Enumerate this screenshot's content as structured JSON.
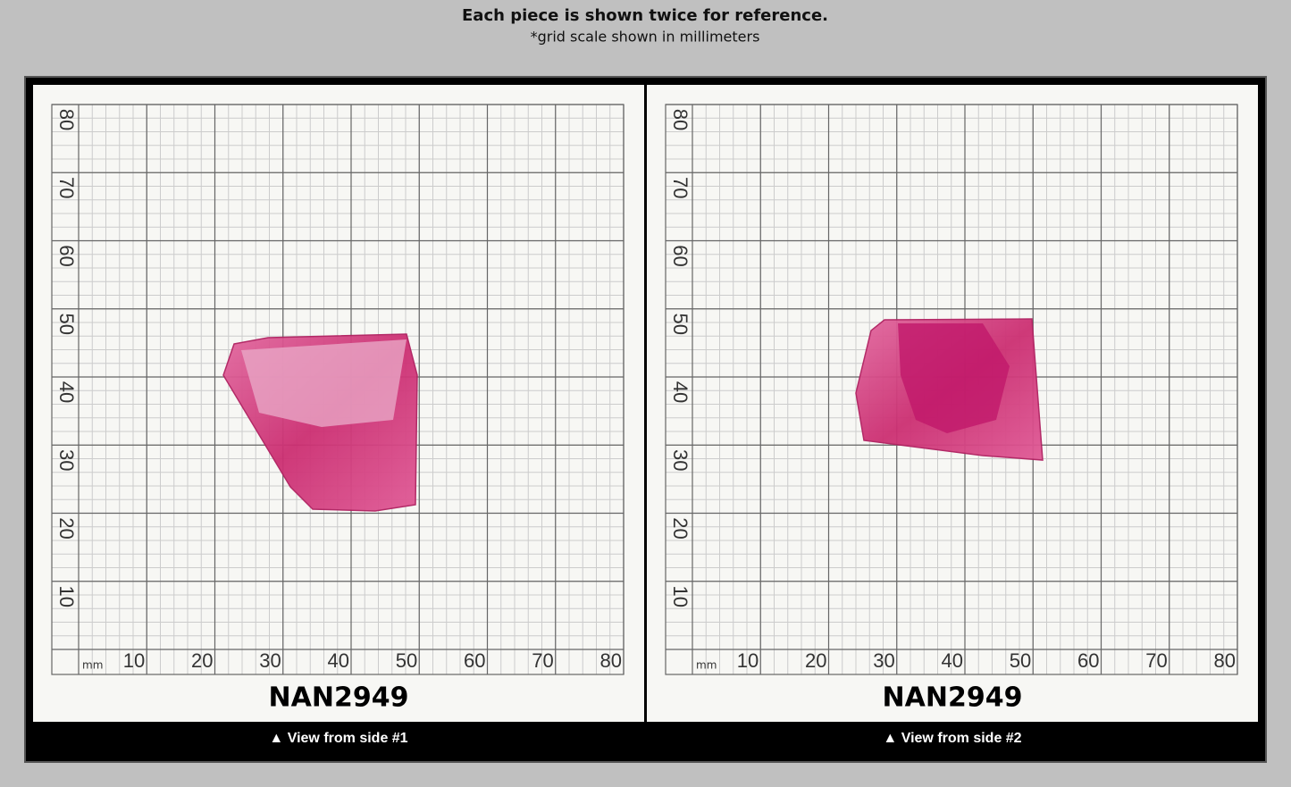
{
  "header": {
    "title": "Each piece is shown twice for reference.",
    "subtitle": "*grid scale shown in millimeters"
  },
  "panels": [
    {
      "unit": "mm",
      "x_labels": [
        "10",
        "20",
        "30",
        "40",
        "50",
        "60",
        "70",
        "80"
      ],
      "y_labels": [
        "10",
        "20",
        "30",
        "40",
        "50",
        "60",
        "70",
        "80"
      ],
      "item_id": "NAN2949",
      "caption": "▲ View from side #1"
    },
    {
      "unit": "mm",
      "x_labels": [
        "10",
        "20",
        "30",
        "40",
        "50",
        "60",
        "70",
        "80"
      ],
      "y_labels": [
        "10",
        "20",
        "30",
        "40",
        "50",
        "60",
        "70",
        "80"
      ],
      "item_id": "NAN2949",
      "caption": "▲ View from side #2"
    }
  ]
}
